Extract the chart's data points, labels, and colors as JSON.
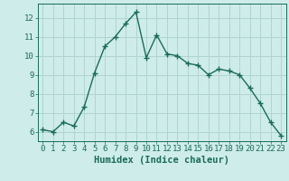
{
  "x": [
    0,
    1,
    2,
    3,
    4,
    5,
    6,
    7,
    8,
    9,
    10,
    11,
    12,
    13,
    14,
    15,
    16,
    17,
    18,
    19,
    20,
    21,
    22,
    23
  ],
  "y": [
    6.1,
    6.0,
    6.5,
    6.3,
    7.3,
    9.1,
    10.5,
    11.0,
    11.7,
    12.3,
    9.9,
    11.1,
    10.1,
    10.0,
    9.6,
    9.5,
    9.0,
    9.3,
    9.2,
    9.0,
    8.3,
    7.5,
    6.5,
    5.8
  ],
  "line_color": "#1a6b5a",
  "marker": "+",
  "marker_size": 4,
  "line_width": 1.0,
  "background_color": "#ceecea",
  "grid_color": "#b0d4d0",
  "xlabel": "Humidex (Indice chaleur)",
  "xlim": [
    -0.5,
    23.5
  ],
  "ylim": [
    5.5,
    12.75
  ],
  "yticks": [
    6,
    7,
    8,
    9,
    10,
    11,
    12
  ],
  "xticks": [
    0,
    1,
    2,
    3,
    4,
    5,
    6,
    7,
    8,
    9,
    10,
    11,
    12,
    13,
    14,
    15,
    16,
    17,
    18,
    19,
    20,
    21,
    22,
    23
  ],
  "tick_label_size": 6.5,
  "xlabel_size": 7.5,
  "tick_color": "#1a6b5a",
  "axis_color": "#1a6b5a"
}
